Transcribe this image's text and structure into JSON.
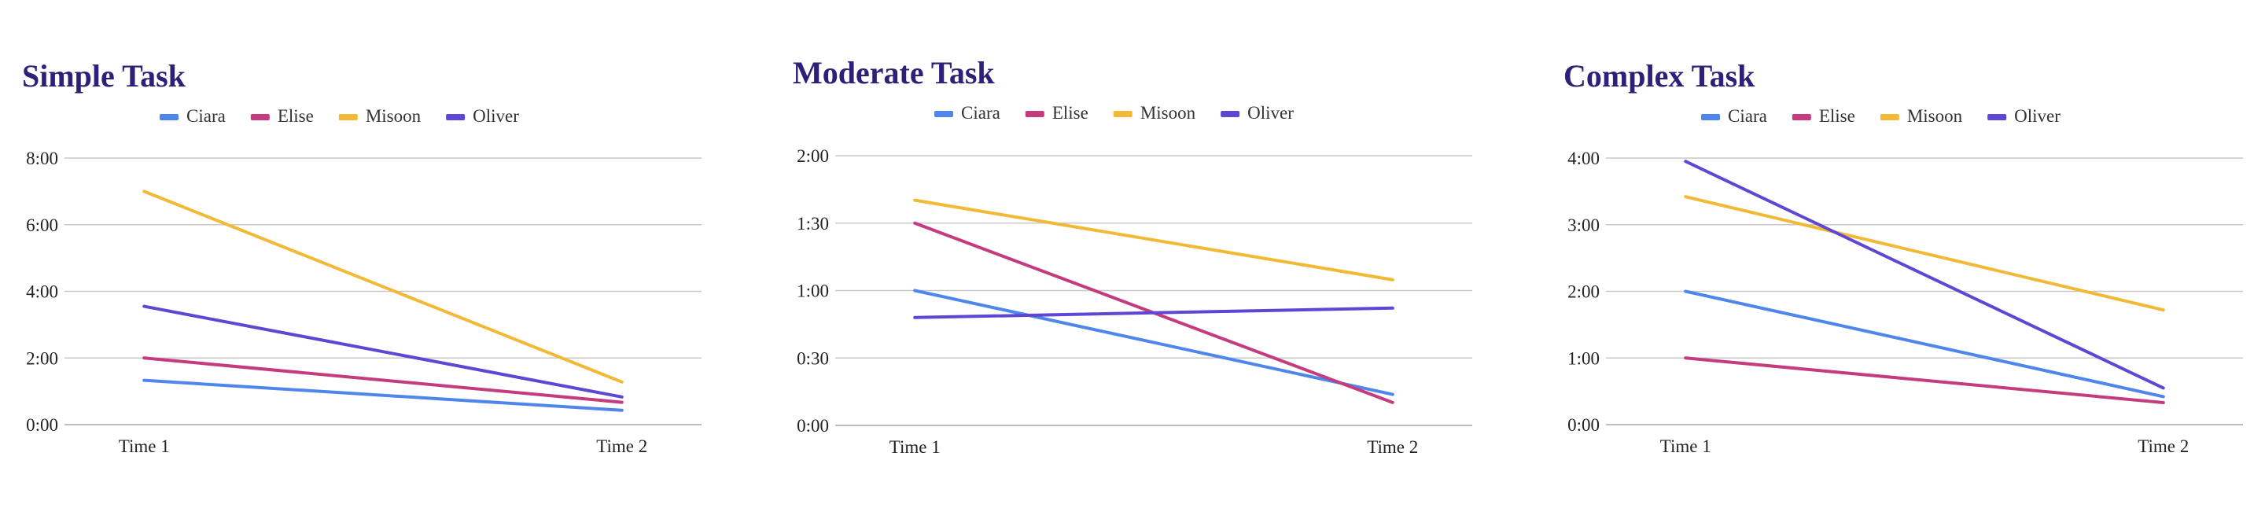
{
  "chart_data": [
    {
      "type": "line",
      "title": "Simple Task",
      "categories": [
        "Time 1",
        "Time 2"
      ],
      "y_unit": "minutes",
      "ylim": [
        0,
        8
      ],
      "yticks": [
        0,
        2,
        4,
        6,
        8
      ],
      "ytick_labels": [
        "0:00",
        "2:00",
        "4:00",
        "6:00",
        "8:00"
      ],
      "legend": "top",
      "grid": true,
      "series": [
        {
          "name": "Ciara",
          "color": "#4f86ec",
          "values": [
            1.33,
            0.43
          ]
        },
        {
          "name": "Elise",
          "color": "#c43b7e",
          "values": [
            2.0,
            0.67
          ]
        },
        {
          "name": "Misoon",
          "color": "#f2b937",
          "values": [
            7.0,
            1.28
          ]
        },
        {
          "name": "Oliver",
          "color": "#5f47d3",
          "values": [
            3.55,
            0.83
          ]
        }
      ]
    },
    {
      "type": "line",
      "title": "Moderate Task",
      "categories": [
        "Time 1",
        "Time 2"
      ],
      "y_unit": "minutes",
      "ylim": [
        0,
        2
      ],
      "yticks": [
        0,
        0.5,
        1,
        1.5,
        2
      ],
      "ytick_labels": [
        "0:00",
        "0:30",
        "1:00",
        "1:30",
        "2:00"
      ],
      "legend": "top",
      "grid": true,
      "series": [
        {
          "name": "Ciara",
          "color": "#4f86ec",
          "values": [
            1.0,
            0.23
          ]
        },
        {
          "name": "Elise",
          "color": "#c43b7e",
          "values": [
            1.5,
            0.17
          ]
        },
        {
          "name": "Misoon",
          "color": "#f2b937",
          "values": [
            1.67,
            1.08
          ]
        },
        {
          "name": "Oliver",
          "color": "#5f47d3",
          "values": [
            0.8,
            0.87
          ]
        }
      ]
    },
    {
      "type": "line",
      "title": "Complex Task",
      "categories": [
        "Time 1",
        "Time 2"
      ],
      "y_unit": "minutes",
      "ylim": [
        0,
        4
      ],
      "yticks": [
        0,
        1,
        2,
        3,
        4
      ],
      "ytick_labels": [
        "0:00",
        "1:00",
        "2:00",
        "3:00",
        "4:00"
      ],
      "legend": "top",
      "grid": true,
      "series": [
        {
          "name": "Ciara",
          "color": "#4f86ec",
          "values": [
            2.0,
            0.42
          ]
        },
        {
          "name": "Elise",
          "color": "#c43b7e",
          "values": [
            1.0,
            0.33
          ]
        },
        {
          "name": "Misoon",
          "color": "#f2b937",
          "values": [
            3.42,
            1.72
          ]
        },
        {
          "name": "Oliver",
          "color": "#5f47d3",
          "values": [
            3.95,
            0.55
          ]
        }
      ]
    }
  ]
}
